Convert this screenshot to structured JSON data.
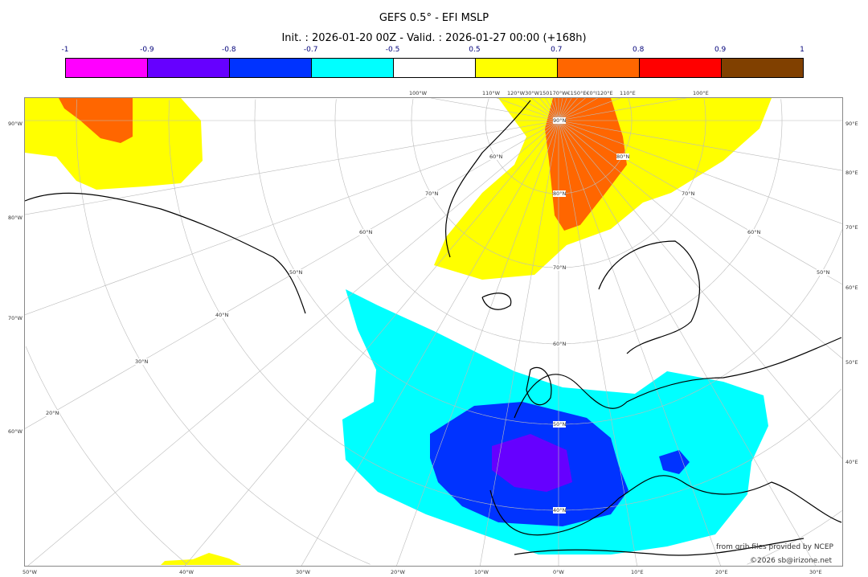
{
  "title": "GEFS 0.5° - EFI MSLP",
  "subtitle": "Init. : 2026-01-20 00Z - Valid. : 2026-01-27 00:00 (+168h)",
  "colorbar": {
    "ticks": [
      "-1",
      "-0.9",
      "-0.8",
      "-0.7",
      "-0.5",
      "0.5",
      "0.7",
      "0.8",
      "0.9",
      "1"
    ],
    "colors": [
      "#ff00ff",
      "#6600ff",
      "#0033ff",
      "#00ffff",
      "#ffffff",
      "#ffff00",
      "#ff6600",
      "#ff0000",
      "#804000"
    ]
  },
  "axes": {
    "left": [
      "90°W",
      "80°W",
      "70°W",
      "60°W"
    ],
    "bottom": [
      "50°W",
      "40°W",
      "30°W",
      "20°W",
      "10°W",
      "0°W",
      "10°E",
      "20°E",
      "30°E"
    ],
    "right": [
      "90°E",
      "80°E",
      "70°E",
      "60°E",
      "50°E",
      "40°E"
    ],
    "top": [
      "100°W",
      "110°W",
      "120°W30°W150170°W€150°E€0°I120°E",
      "110°E",
      "100°E"
    ]
  },
  "lat_labels": [
    "90°N",
    "80°N",
    "70°N",
    "60°N",
    "50°N",
    "40°N",
    "80°N",
    "70°N",
    "60°N",
    "50°N",
    "40°N",
    "30°N",
    "20°N",
    "60°N",
    "70°N",
    "60°N",
    "50°N"
  ],
  "credits": {
    "source": "from grib files provided by NCEP",
    "copyright": "©2026 sb@irizone.net"
  }
}
